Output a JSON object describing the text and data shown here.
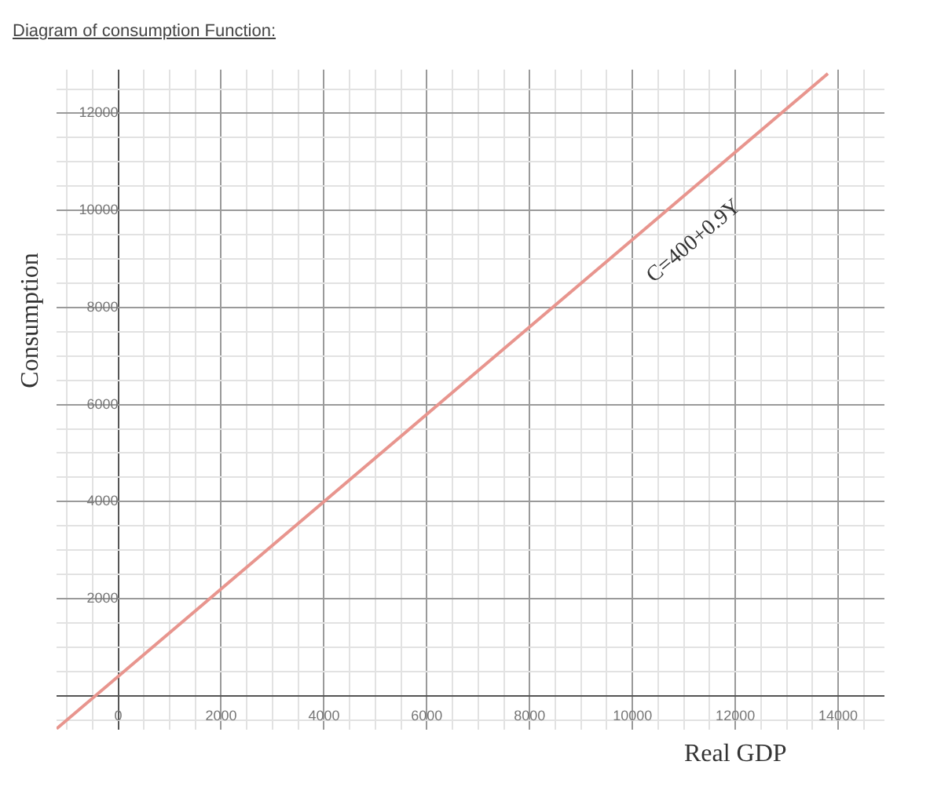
{
  "chart_data": {
    "type": "line",
    "title": "Diagram of consumption Function:",
    "xlabel": "Real GDP",
    "ylabel": "Consumption",
    "series": [
      {
        "x": [
          -1200,
          13800
        ],
        "values": [
          -680,
          12820
        ],
        "color": "#e8958e"
      }
    ],
    "xlim": [
      -1200,
      14900
    ],
    "ylim": [
      -700,
      12900
    ],
    "xticks": [
      {
        "value": -1000,
        "label": null
      },
      {
        "value": -500,
        "label": null
      },
      {
        "value": 0,
        "label": "0"
      },
      {
        "value": 500,
        "label": null
      },
      {
        "value": 1000,
        "label": null
      },
      {
        "value": 1500,
        "label": null
      },
      2000,
      {
        "value": 2500,
        "label": null
      },
      {
        "value": 3000,
        "label": null
      },
      {
        "value": 3500,
        "label": null
      },
      4000,
      {
        "value": 4500,
        "label": null
      },
      {
        "value": 5000,
        "label": null
      },
      {
        "value": 5500,
        "label": null
      },
      6000,
      {
        "value": 6500,
        "label": null
      },
      {
        "value": 7000,
        "label": null
      },
      {
        "value": 7500,
        "label": null
      },
      8000,
      {
        "value": 8500,
        "label": null
      },
      {
        "value": 9000,
        "label": null
      },
      {
        "value": 9500,
        "label": null
      },
      10000,
      {
        "value": 10500,
        "label": null
      },
      {
        "value": 11000,
        "label": null
      },
      {
        "value": 11500,
        "label": null
      },
      12000,
      {
        "value": 12500,
        "label": null
      },
      {
        "value": 13000,
        "label": null
      },
      {
        "value": 13500,
        "label": null
      },
      14000,
      {
        "value": 14500,
        "label": null
      }
    ],
    "yticks": [
      {
        "value": -500,
        "label": null
      },
      {
        "value": 0,
        "label": null
      },
      {
        "value": 500,
        "label": null
      },
      {
        "value": 1000,
        "label": null
      },
      {
        "value": 1500,
        "label": null
      },
      2000,
      {
        "value": 2500,
        "label": null
      },
      {
        "value": 3000,
        "label": null
      },
      {
        "value": 3500,
        "label": null
      },
      4000,
      {
        "value": 4500,
        "label": null
      },
      {
        "value": 5000,
        "label": null
      },
      {
        "value": 5500,
        "label": null
      },
      6000,
      {
        "value": 6500,
        "label": null
      },
      {
        "value": 7000,
        "label": null
      },
      {
        "value": 7500,
        "label": null
      },
      8000,
      {
        "value": 8500,
        "label": null
      },
      {
        "value": 9000,
        "label": null
      },
      {
        "value": 9500,
        "label": null
      },
      10000,
      {
        "value": 10500,
        "label": null
      },
      {
        "value": 11000,
        "label": null
      },
      {
        "value": 11500,
        "label": null
      },
      12000,
      {
        "value": 12500,
        "label": null
      }
    ],
    "annotations": [
      "C=400+0.9Y"
    ],
    "grid": true,
    "marker": "none",
    "line_style": "solid",
    "legend": false
  }
}
